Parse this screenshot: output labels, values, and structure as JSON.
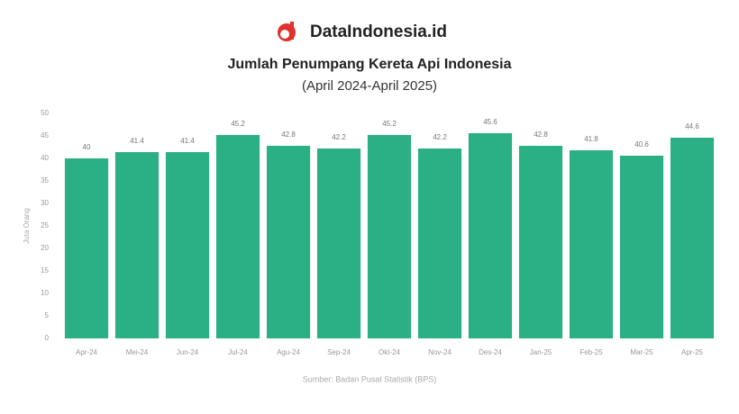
{
  "brand": "DataIndonesia.id",
  "chart_data": {
    "type": "bar",
    "title": "Jumlah Penumpang Kereta Api Indonesia",
    "subtitle": "(April 2024-April 2025)",
    "y_label": "Juta Orang",
    "source": "Sumber: Badan Pusat Statistik (BPS)",
    "categories": [
      "Apr-24",
      "Mei-24",
      "Jun-24",
      "Jul-24",
      "Agu-24",
      "Sep-24",
      "Okt-24",
      "Nov-24",
      "Des-24",
      "Jan-25",
      "Feb-25",
      "Mar-25",
      "Apr-25"
    ],
    "values": [
      40.0,
      41.4,
      41.4,
      45.2,
      42.8,
      42.2,
      45.2,
      42.2,
      45.6,
      42.8,
      41.8,
      40.6,
      44.6
    ],
    "color": "#2baf85",
    "ylim": [
      0,
      50
    ],
    "yticks": [
      0,
      5,
      10,
      15,
      20,
      25,
      30,
      35,
      40,
      45,
      50
    ],
    "grid": false
  }
}
